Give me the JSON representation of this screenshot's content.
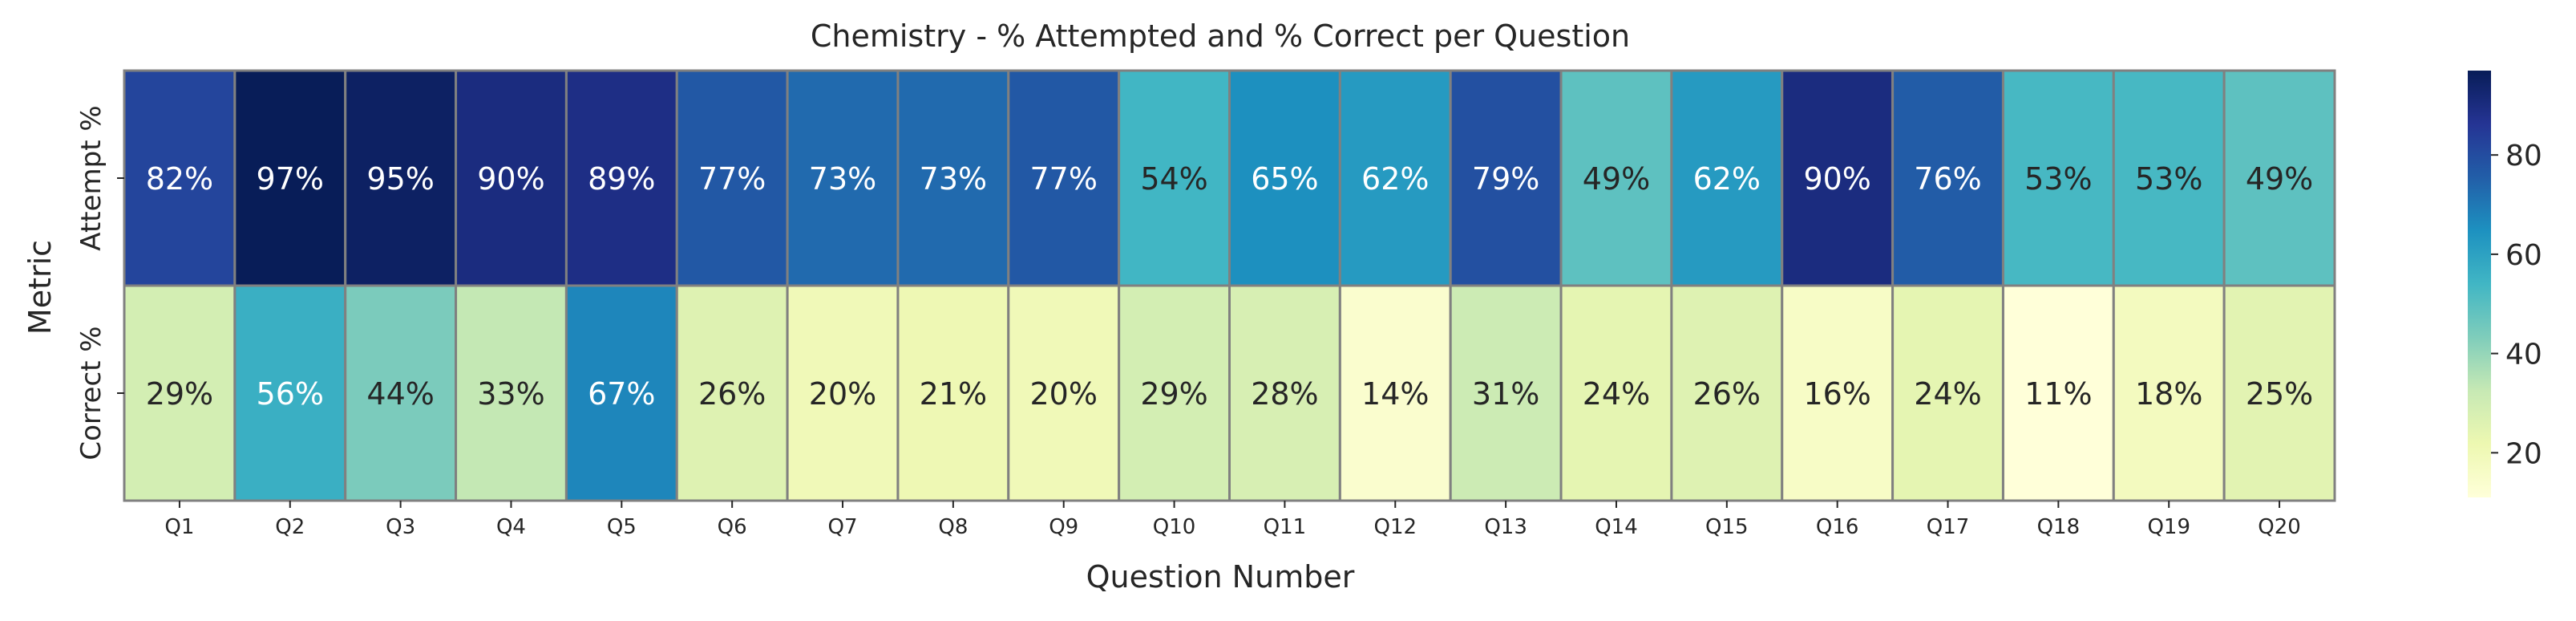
{
  "chart_data": {
    "type": "heatmap",
    "title": "Chemistry - % Attempted and % Correct per Question",
    "xlabel": "Question Number",
    "ylabel": "Metric",
    "x_categories": [
      "Q1",
      "Q2",
      "Q3",
      "Q4",
      "Q5",
      "Q6",
      "Q7",
      "Q8",
      "Q9",
      "Q10",
      "Q11",
      "Q12",
      "Q13",
      "Q14",
      "Q15",
      "Q16",
      "Q17",
      "Q18",
      "Q19",
      "Q20"
    ],
    "y_categories": [
      "Attempt %",
      "Correct %"
    ],
    "values": [
      [
        82,
        97,
        95,
        90,
        89,
        77,
        73,
        73,
        77,
        54,
        65,
        62,
        79,
        49,
        62,
        90,
        76,
        53,
        53,
        49
      ],
      [
        29,
        56,
        44,
        33,
        67,
        26,
        20,
        21,
        20,
        29,
        28,
        14,
        31,
        24,
        26,
        16,
        24,
        11,
        18,
        25
      ]
    ],
    "value_suffix": "%",
    "colormap": "YlGnBu",
    "colorbar": {
      "ticks": [
        20,
        40,
        60,
        80
      ],
      "range": [
        11,
        97
      ]
    },
    "cell_border_color": "#808080",
    "annotation_colors": {
      "light": "#ffffff",
      "dark": "#262626"
    }
  }
}
